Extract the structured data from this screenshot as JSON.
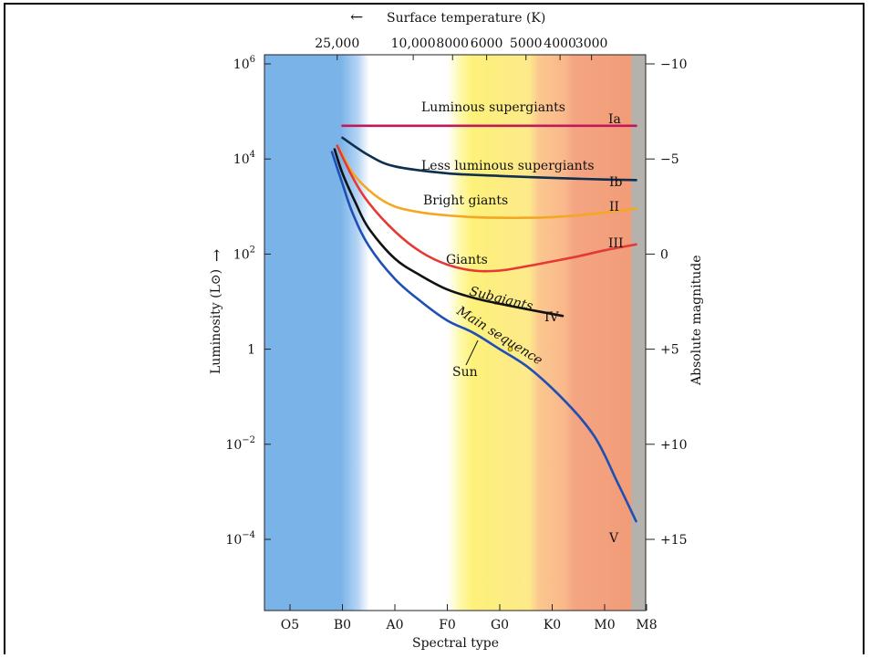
{
  "chart_data": {
    "type": "line",
    "title": "",
    "xlabel": "Spectral type",
    "ylabel": "Luminosity (L⊙)",
    "y2label": "Absolute magnitude",
    "toplabel": "Surface temperature (K)",
    "top_arrow": "←",
    "ylabel_arrow": "→",
    "y_scale": "log",
    "ylim": [
      1.5e-05,
      1000000
    ],
    "spectral_ticks": [
      {
        "label": "O5",
        "pos": 0
      },
      {
        "label": "B0",
        "pos": 1
      },
      {
        "label": "A0",
        "pos": 2
      },
      {
        "label": "F0",
        "pos": 3
      },
      {
        "label": "G0",
        "pos": 4
      },
      {
        "label": "K0",
        "pos": 5
      },
      {
        "label": "M0",
        "pos": 6
      },
      {
        "label": "M8",
        "pos": 6.8
      }
    ],
    "temperature_ticks": [
      {
        "label": "25,000",
        "pos": 0.9
      },
      {
        "label": "10,000",
        "pos": 2.35
      },
      {
        "label": "8000",
        "pos": 3.1
      },
      {
        "label": "6000",
        "pos": 3.75
      },
      {
        "label": "5000",
        "pos": 4.5
      },
      {
        "label": "4000",
        "pos": 5.15
      },
      {
        "label": "3000",
        "pos": 5.75
      }
    ],
    "y_ticks": [
      {
        "label": "10",
        "exp": "6",
        "value": 1000000
      },
      {
        "label": "10",
        "exp": "4",
        "value": 10000
      },
      {
        "label": "10",
        "exp": "2",
        "value": 100
      },
      {
        "label": "1",
        "exp": "",
        "value": 1
      },
      {
        "label": "10",
        "exp": "−2",
        "value": 0.01
      },
      {
        "label": "10",
        "exp": "−4",
        "value": 0.0001
      }
    ],
    "mag_ticks": [
      {
        "label": "−10",
        "value": 1000000
      },
      {
        "label": "−5",
        "value": 10000
      },
      {
        "label": "0",
        "value": 100
      },
      {
        "label": "+5",
        "value": 1
      },
      {
        "label": "+10",
        "value": 0.01
      },
      {
        "label": "+15",
        "value": 0.0001
      }
    ],
    "series": [
      {
        "name": "Luminous supergiants",
        "class": "Ia",
        "color": "#c2185b",
        "x": [
          1,
          3,
          5,
          6.6
        ],
        "y": [
          50000,
          50000,
          50000,
          50000
        ]
      },
      {
        "name": "Less luminous supergiants",
        "class": "Ib",
        "color": "#0f2f4f",
        "x": [
          1,
          1.5,
          2,
          3,
          4,
          5,
          6,
          6.6
        ],
        "y": [
          28000,
          12000,
          7000,
          5000,
          4400,
          4000,
          3700,
          3600
        ]
      },
      {
        "name": "Bright giants",
        "class": "II",
        "color": "#f5a623",
        "x": [
          0.95,
          1.2,
          1.6,
          2,
          2.5,
          3,
          3.5,
          4,
          4.5,
          5,
          5.5,
          6,
          6.6
        ],
        "y": [
          16000,
          5000,
          1800,
          1000,
          750,
          650,
          600,
          580,
          580,
          600,
          650,
          750,
          900
        ]
      },
      {
        "name": "Giants",
        "class": "III",
        "color": "#e53935",
        "x": [
          0.9,
          1.2,
          1.5,
          2,
          2.5,
          3,
          3.5,
          4,
          4.5,
          5,
          5.5,
          6,
          6.6
        ],
        "y": [
          19000,
          4000,
          1200,
          300,
          110,
          60,
          45,
          45,
          55,
          70,
          90,
          120,
          160
        ]
      },
      {
        "name": "Subgiants",
        "class": "IV",
        "color": "#111111",
        "x": [
          0.85,
          1,
          1.25,
          1.5,
          2,
          2.5,
          3,
          3.5,
          4,
          4.5,
          5.2
        ],
        "y": [
          16000,
          5000,
          1200,
          350,
          80,
          35,
          18,
          12,
          9,
          7,
          5
        ]
      },
      {
        "name": "Main sequence",
        "class": "V",
        "color": "#1e4fb5",
        "x": [
          0.8,
          1,
          1.2,
          1.5,
          2,
          2.5,
          3,
          3.5,
          4,
          4.5,
          5,
          5.5,
          5.8,
          6,
          6.2,
          6.4,
          6.6
        ],
        "y": [
          14000,
          3000,
          700,
          150,
          30,
          10,
          4,
          2.2,
          1,
          0.45,
          0.15,
          0.04,
          0.015,
          0.006,
          0.002,
          0.0007,
          0.00024
        ]
      }
    ],
    "labels": {
      "ia": "Luminous supergiants",
      "ib": "Less luminous supergiants",
      "ii": "Bright giants",
      "iii": "Giants",
      "iv": "Subgiants",
      "v": "Main sequence",
      "sun": "Sun",
      "class_ia": "Ia",
      "class_ib": "Ib",
      "class_ii": "II",
      "class_iii": "III",
      "class_iv": "IV",
      "class_v": "V"
    },
    "sun": {
      "x": 4.2,
      "y": 1
    },
    "colors": {
      "o_b": "#79b3e8",
      "a_white": "#ffffff",
      "g_yellow": "#fdf079",
      "k_orange": "#fbc78f",
      "m_red": "#f4a582",
      "edge_gray": "#b5b2ad"
    }
  }
}
